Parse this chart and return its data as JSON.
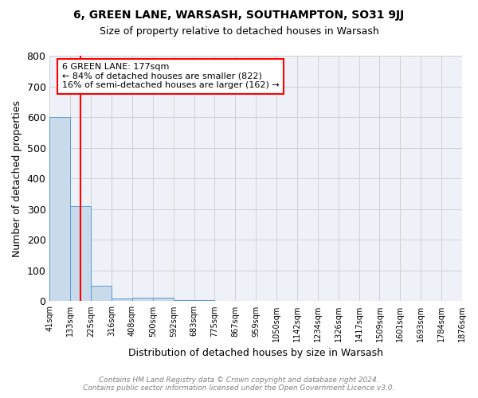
{
  "title": "6, GREEN LANE, WARSASH, SOUTHAMPTON, SO31 9JJ",
  "subtitle": "Size of property relative to detached houses in Warsash",
  "xlabel": "Distribution of detached houses by size in Warsash",
  "ylabel": "Number of detached properties",
  "footer_line1": "Contains HM Land Registry data © Crown copyright and database right 2024.",
  "footer_line2": "Contains public sector information licensed under the Open Government Licence v3.0.",
  "bin_labels": [
    "41sqm",
    "133sqm",
    "225sqm",
    "316sqm",
    "408sqm",
    "500sqm",
    "592sqm",
    "683sqm",
    "775sqm",
    "867sqm",
    "959sqm",
    "1050sqm",
    "1142sqm",
    "1234sqm",
    "1326sqm",
    "1417sqm",
    "1509sqm",
    "1601sqm",
    "1693sqm",
    "1784sqm",
    "1876sqm"
  ],
  "bar_heights": [
    600,
    310,
    50,
    10,
    12,
    12,
    5,
    5,
    0,
    0,
    0,
    0,
    0,
    0,
    0,
    0,
    0,
    0,
    0,
    0
  ],
  "bar_color": "#c9daea",
  "bar_edge_color": "#5b9bd5",
  "annotation_line1": "6 GREEN LANE: 177sqm",
  "annotation_line2": "← 84% of detached houses are smaller (822)",
  "annotation_line3": "16% of semi-detached houses are larger (162) →",
  "annotation_box_color": "white",
  "annotation_box_edge": "red",
  "ylim": [
    0,
    800
  ],
  "yticks": [
    0,
    100,
    200,
    300,
    400,
    500,
    600,
    700,
    800
  ],
  "grid_color": "#d0d0d0",
  "bg_color": "#eef2f8"
}
